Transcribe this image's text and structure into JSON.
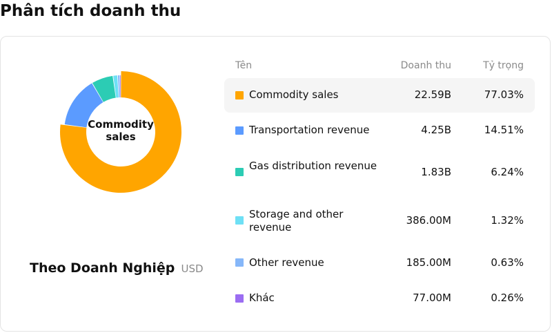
{
  "page": {
    "title": "Phân tích doanh thu"
  },
  "caption": {
    "title": "Theo Doanh Nghiệp",
    "unit": "USD"
  },
  "table": {
    "headers": {
      "name": "Tên",
      "revenue": "Doanh thu",
      "share": "Tỷ trọng"
    },
    "rows": [
      {
        "name": "Commodity sales",
        "revenue": "22.59B",
        "share": "77.03%",
        "color": "#FFA500"
      },
      {
        "name": "Transportation revenue",
        "revenue": "4.25B",
        "share": "14.51%",
        "color": "#5B9BFF"
      },
      {
        "name": "Gas distribution revenue",
        "revenue": "1.83B",
        "share": "6.24%",
        "color": "#2CCCB4"
      },
      {
        "name": "Storage and other revenue",
        "revenue": "386.00M",
        "share": "1.32%",
        "color": "#6EE0F5"
      },
      {
        "name": "Other revenue",
        "revenue": "185.00M",
        "share": "0.63%",
        "color": "#86B7F9"
      },
      {
        "name": "Khác",
        "revenue": "77.00M",
        "share": "0.26%",
        "color": "#9B6DF2"
      }
    ]
  },
  "chart_data": {
    "type": "pie",
    "variant": "donut",
    "center_label": "Commodity sales",
    "highlighted": "Commodity sales",
    "categories": [
      "Commodity sales",
      "Transportation revenue",
      "Gas distribution revenue",
      "Storage and other revenue",
      "Other revenue",
      "Khác"
    ],
    "values": [
      77.03,
      14.51,
      6.24,
      1.32,
      0.63,
      0.26
    ],
    "colors": [
      "#FFA500",
      "#5B9BFF",
      "#2CCCB4",
      "#6EE0F5",
      "#86B7F9",
      "#9B6DF2"
    ]
  }
}
